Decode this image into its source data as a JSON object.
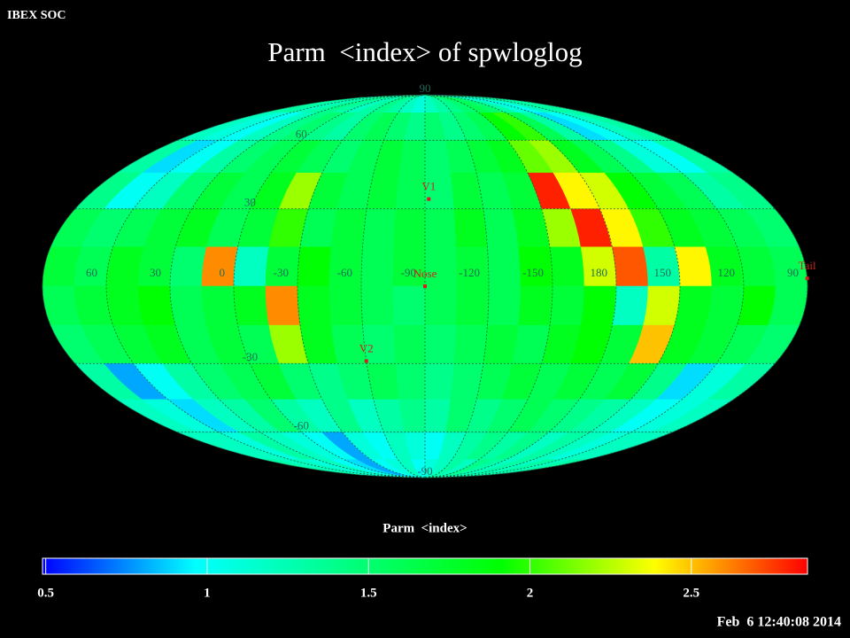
{
  "header": "IBEX SOC",
  "timestamp": "Feb  6 12:40:08 2014",
  "chart_data": {
    "type": "mollweide-heatmap",
    "title": "Parm  <index> of spwloglog",
    "center_lon": -90,
    "lon_ticks": [
      60,
      30,
      0,
      -30,
      -60,
      -90,
      -120,
      -150,
      180,
      150,
      120,
      90
    ],
    "lat_ticks": [
      90,
      60,
      30,
      -30,
      -60,
      -90
    ],
    "grid": true,
    "cells": [
      [
        1.3,
        1.3,
        1.2,
        1.3,
        1.4,
        1.3,
        1.2,
        1.3,
        1.4,
        1.3,
        1.2,
        1.1,
        1.2,
        1.3,
        1.4,
        1.5,
        1.6,
        1.5,
        1.3,
        1.1,
        1.0,
        1.2,
        1.3,
        1.3
      ],
      [
        1.2,
        1.1,
        1.0,
        1.2,
        1.4,
        1.5,
        1.4,
        1.3,
        1.5,
        1.6,
        1.5,
        1.4,
        1.5,
        1.4,
        1.5,
        1.6,
        1.9,
        2.0,
        1.6,
        1.3,
        0.9,
        1.0,
        1.2,
        1.3
      ],
      [
        1.3,
        0.9,
        1.0,
        1.3,
        1.5,
        1.6,
        1.7,
        1.6,
        1.5,
        1.6,
        1.7,
        1.6,
        1.5,
        1.6,
        1.7,
        1.8,
        2.1,
        2.2,
        1.8,
        1.6,
        1.4,
        1.1,
        1.0,
        1.3
      ],
      [
        1.4,
        1.0,
        1.2,
        1.5,
        1.7,
        1.6,
        1.8,
        2.2,
        1.7,
        1.6,
        1.7,
        1.6,
        1.5,
        1.7,
        1.6,
        1.7,
        2.8,
        2.4,
        2.3,
        1.9,
        1.7,
        1.6,
        1.3,
        1.4
      ],
      [
        1.6,
        1.5,
        1.6,
        1.7,
        1.8,
        1.6,
        1.7,
        2.0,
        1.6,
        1.7,
        1.6,
        1.7,
        1.6,
        1.8,
        1.6,
        1.8,
        2.2,
        2.8,
        2.4,
        2.0,
        1.8,
        1.7,
        1.6,
        1.5
      ],
      [
        1.7,
        1.6,
        1.8,
        1.7,
        1.5,
        2.6,
        1.2,
        1.7,
        1.9,
        1.7,
        1.6,
        1.7,
        1.6,
        1.7,
        1.6,
        1.9,
        1.8,
        2.3,
        2.7,
        1.3,
        2.4,
        1.8,
        1.7,
        1.6
      ],
      [
        1.6,
        1.7,
        1.8,
        1.9,
        1.6,
        1.7,
        1.8,
        2.6,
        1.8,
        1.7,
        1.6,
        1.5,
        1.6,
        1.7,
        1.6,
        1.8,
        1.7,
        1.9,
        1.2,
        2.3,
        1.8,
        1.7,
        1.9,
        1.6
      ],
      [
        1.5,
        1.6,
        1.7,
        1.8,
        1.6,
        1.7,
        1.6,
        2.2,
        1.8,
        1.6,
        1.5,
        1.6,
        1.5,
        1.6,
        1.7,
        1.6,
        1.8,
        1.9,
        1.7,
        2.5,
        1.8,
        1.7,
        1.6,
        1.5
      ],
      [
        1.3,
        0.8,
        1.0,
        1.3,
        1.5,
        1.6,
        1.7,
        1.5,
        1.4,
        1.5,
        1.6,
        1.5,
        1.4,
        1.5,
        1.6,
        1.7,
        1.6,
        1.7,
        1.6,
        1.7,
        1.4,
        0.9,
        1.1,
        1.3
      ],
      [
        1.2,
        1.1,
        0.9,
        1.2,
        1.3,
        1.5,
        1.3,
        1.2,
        1.4,
        1.2,
        1.3,
        1.4,
        1.3,
        1.5,
        1.4,
        1.5,
        1.6,
        1.5,
        1.4,
        1.3,
        1.2,
        1.0,
        1.1,
        1.2
      ],
      [
        1.2,
        1.2,
        1.1,
        1.3,
        1.2,
        1.1,
        1.0,
        0.8,
        1.1,
        1.0,
        1.2,
        1.1,
        1.0,
        1.2,
        1.3,
        1.4,
        1.3,
        1.4,
        1.2,
        1.3,
        1.2,
        1.1,
        1.2,
        1.2
      ],
      [
        1.3,
        1.2,
        1.2,
        1.1,
        1.2,
        1.0,
        0.9,
        0.8,
        1.0,
        1.1,
        1.2,
        1.0,
        1.1,
        1.2,
        1.3,
        1.2,
        1.4,
        1.3,
        1.2,
        1.3,
        1.2,
        1.3,
        1.2,
        1.3
      ]
    ],
    "markers": [
      {
        "label": "V1",
        "lon": -92,
        "lat": 34
      },
      {
        "label": "Nose",
        "lon": -90,
        "lat": 0
      },
      {
        "label": "V2",
        "lon": -60,
        "lat": -29
      },
      {
        "label": "Tail",
        "lon": 90,
        "lat": 3
      }
    ],
    "marker_color": "#d02020",
    "colorbar": {
      "label": "Parm  <index>",
      "clim": [
        0.49,
        2.86
      ],
      "ticks": [
        0.5,
        1,
        1.5,
        2,
        2.5
      ],
      "colormap": [
        "#0000ff",
        "#00ffff",
        "#00ff80",
        "#00ff00",
        "#ffff00",
        "#ff0000"
      ]
    }
  }
}
